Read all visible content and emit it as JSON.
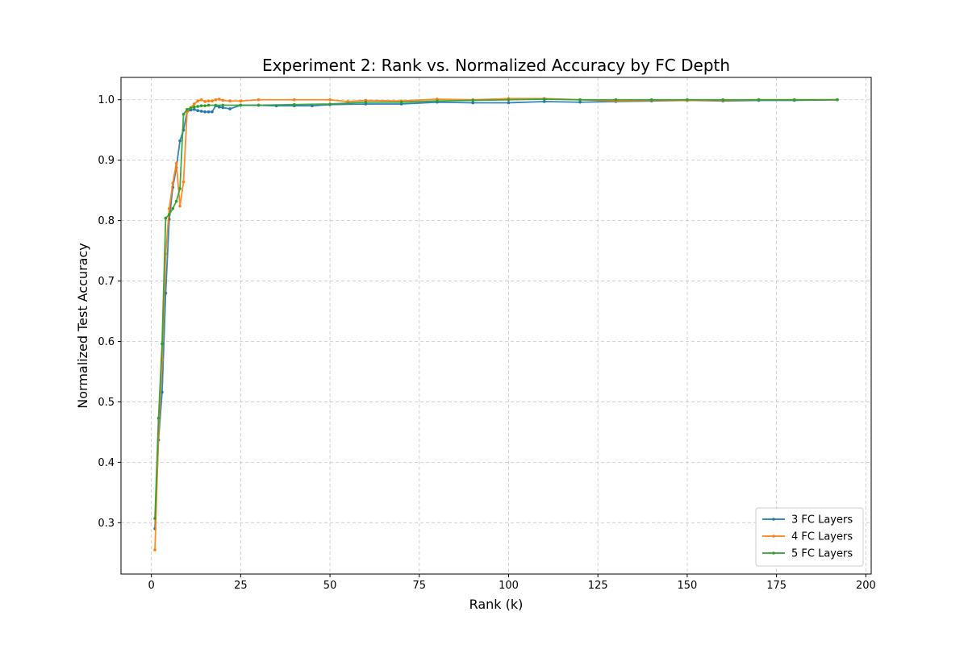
{
  "chart_data": {
    "type": "line",
    "title": "Experiment 2: Rank vs. Normalized Accuracy by FC Depth",
    "xlabel": "Rank (k)",
    "ylabel": "Normalized Test Accuracy",
    "xlim": [
      -8.5,
      201.5
    ],
    "ylim": [
      0.215,
      1.037
    ],
    "xticks": [
      0,
      25,
      50,
      75,
      100,
      125,
      150,
      175,
      200
    ],
    "xtick_labels": [
      "0",
      "25",
      "50",
      "75",
      "100",
      "125",
      "150",
      "175",
      "200"
    ],
    "yticks": [
      0.3,
      0.4,
      0.5,
      0.6,
      0.7,
      0.8,
      0.9,
      1.0
    ],
    "ytick_labels": [
      "0.3",
      "0.4",
      "0.5",
      "0.6",
      "0.7",
      "0.8",
      "0.9",
      "1.0"
    ],
    "grid": true,
    "legend_position": "lower-right",
    "series": [
      {
        "name": "3 FC Layers",
        "color": "#1f77b4",
        "points": [
          [
            1,
            0.29
          ],
          [
            2,
            0.437
          ],
          [
            3,
            0.516
          ],
          [
            4,
            0.68
          ],
          [
            5,
            0.802
          ],
          [
            6,
            0.855
          ],
          [
            7,
            0.888
          ],
          [
            8,
            0.932
          ],
          [
            9,
            0.95
          ],
          [
            10,
            0.98
          ],
          [
            11,
            0.983
          ],
          [
            12,
            0.984
          ],
          [
            13,
            0.982
          ],
          [
            14,
            0.981
          ],
          [
            15,
            0.98
          ],
          [
            16,
            0.98
          ],
          [
            17,
            0.98
          ],
          [
            18,
            0.99
          ],
          [
            19,
            0.988
          ],
          [
            20,
            0.987
          ],
          [
            22,
            0.985
          ],
          [
            25,
            0.991
          ],
          [
            30,
            0.991
          ],
          [
            35,
            0.99
          ],
          [
            40,
            0.99
          ],
          [
            45,
            0.99
          ],
          [
            50,
            0.992
          ],
          [
            60,
            0.993
          ],
          [
            70,
            0.993
          ],
          [
            80,
            0.996
          ],
          [
            90,
            0.995
          ],
          [
            100,
            0.995
          ],
          [
            110,
            0.997
          ],
          [
            120,
            0.996
          ],
          [
            130,
            0.997
          ],
          [
            140,
            0.998
          ],
          [
            150,
            0.999
          ],
          [
            160,
            0.998
          ],
          [
            170,
            0.999
          ],
          [
            180,
            0.999
          ],
          [
            192,
            1.0
          ]
        ]
      },
      {
        "name": "4 FC Layers",
        "color": "#ff7f0e",
        "points": [
          [
            1,
            0.255
          ],
          [
            2,
            0.447
          ],
          [
            3,
            0.57
          ],
          [
            4,
            0.745
          ],
          [
            5,
            0.82
          ],
          [
            6,
            0.862
          ],
          [
            7,
            0.895
          ],
          [
            8,
            0.824
          ],
          [
            9,
            0.864
          ],
          [
            10,
            0.98
          ],
          [
            11,
            0.987
          ],
          [
            12,
            0.993
          ],
          [
            13,
            0.998
          ],
          [
            14,
            1.0
          ],
          [
            15,
            0.997
          ],
          [
            16,
            0.998
          ],
          [
            17,
            0.998
          ],
          [
            18,
            1.0
          ],
          [
            19,
            1.001
          ],
          [
            20,
            0.999
          ],
          [
            22,
            0.998
          ],
          [
            25,
            0.998
          ],
          [
            30,
            1.0
          ],
          [
            40,
            1.0
          ],
          [
            50,
            1.0
          ],
          [
            55,
            0.997
          ],
          [
            60,
            0.999
          ],
          [
            70,
            0.998
          ],
          [
            80,
            1.001
          ],
          [
            90,
            1.0
          ],
          [
            100,
            1.002
          ],
          [
            110,
            1.002
          ],
          [
            120,
            1.0
          ],
          [
            130,
            0.998
          ],
          [
            140,
            0.999
          ],
          [
            150,
            0.999
          ],
          [
            160,
            0.999
          ],
          [
            170,
            1.0
          ],
          [
            180,
            1.0
          ],
          [
            192,
            1.0
          ]
        ]
      },
      {
        "name": "5 FC Layers",
        "color": "#2ca02c",
        "points": [
          [
            1,
            0.307
          ],
          [
            2,
            0.473
          ],
          [
            3,
            0.596
          ],
          [
            4,
            0.804
          ],
          [
            5,
            0.81
          ],
          [
            6,
            0.82
          ],
          [
            7,
            0.832
          ],
          [
            8,
            0.853
          ],
          [
            9,
            0.976
          ],
          [
            10,
            0.984
          ],
          [
            11,
            0.986
          ],
          [
            12,
            0.988
          ],
          [
            13,
            0.989
          ],
          [
            14,
            0.99
          ],
          [
            15,
            0.99
          ],
          [
            16,
            0.991
          ],
          [
            18,
            0.991
          ],
          [
            20,
            0.991
          ],
          [
            25,
            0.991
          ],
          [
            30,
            0.991
          ],
          [
            40,
            0.992
          ],
          [
            50,
            0.993
          ],
          [
            60,
            0.996
          ],
          [
            70,
            0.996
          ],
          [
            80,
            0.998
          ],
          [
            90,
            0.999
          ],
          [
            100,
            1.0
          ],
          [
            110,
            1.001
          ],
          [
            120,
            1.0
          ],
          [
            130,
            1.0
          ],
          [
            140,
            1.0
          ],
          [
            150,
            1.0
          ],
          [
            160,
            1.0
          ],
          [
            170,
            1.0
          ],
          [
            180,
            1.0
          ],
          [
            192,
            1.0
          ]
        ]
      }
    ]
  }
}
